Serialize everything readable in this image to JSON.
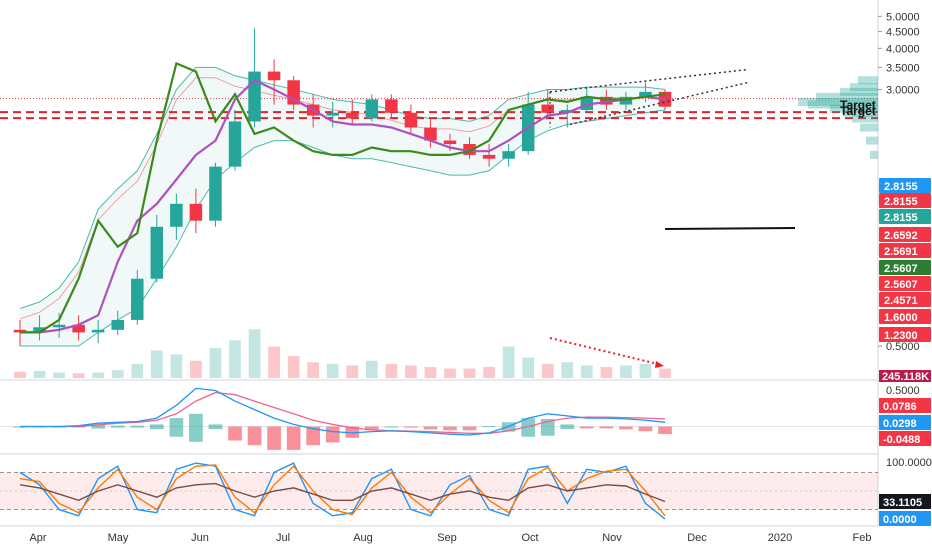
{
  "chart_data": [
    {
      "type": "candlestick",
      "panel": "price",
      "y_scale": "log",
      "ylim": [
        0.4,
        5.3
      ],
      "y_ticks": [
        "5.0000",
        "4.5000",
        "4.0000",
        "3.5000",
        "3.0000",
        "0.5000"
      ],
      "x_ticks": [
        "Apr",
        "May",
        "Jun",
        "Jul",
        "Aug",
        "Sep",
        "Oct",
        "Nov",
        "Dec",
        "2020",
        "Feb"
      ],
      "candles": [
        {
          "date": "04-01",
          "o": 0.56,
          "h": 0.6,
          "l": 0.5,
          "c": 0.55
        },
        {
          "date": "04-08",
          "o": 0.55,
          "h": 0.62,
          "l": 0.52,
          "c": 0.57
        },
        {
          "date": "04-15",
          "o": 0.57,
          "h": 0.63,
          "l": 0.53,
          "c": 0.58
        },
        {
          "date": "04-22",
          "o": 0.58,
          "h": 0.62,
          "l": 0.52,
          "c": 0.55
        },
        {
          "date": "04-29",
          "o": 0.55,
          "h": 0.6,
          "l": 0.51,
          "c": 0.56
        },
        {
          "date": "05-06",
          "o": 0.56,
          "h": 0.64,
          "l": 0.54,
          "c": 0.6
        },
        {
          "date": "05-13",
          "o": 0.6,
          "h": 0.85,
          "l": 0.58,
          "c": 0.8
        },
        {
          "date": "05-20",
          "o": 0.8,
          "h": 1.25,
          "l": 0.78,
          "c": 1.15
        },
        {
          "date": "05-27",
          "o": 1.15,
          "h": 1.45,
          "l": 1.05,
          "c": 1.35
        },
        {
          "date": "06-03",
          "o": 1.35,
          "h": 1.5,
          "l": 1.1,
          "c": 1.2
        },
        {
          "date": "06-10",
          "o": 1.2,
          "h": 1.8,
          "l": 1.15,
          "c": 1.75
        },
        {
          "date": "06-17",
          "o": 1.75,
          "h": 2.6,
          "l": 1.7,
          "c": 2.4
        },
        {
          "date": "06-24",
          "o": 2.4,
          "h": 4.6,
          "l": 2.3,
          "c": 3.4
        },
        {
          "date": "07-01",
          "o": 3.4,
          "h": 3.7,
          "l": 2.7,
          "c": 3.2
        },
        {
          "date": "07-08",
          "o": 3.2,
          "h": 3.3,
          "l": 2.6,
          "c": 2.7
        },
        {
          "date": "07-15",
          "o": 2.7,
          "h": 2.9,
          "l": 2.3,
          "c": 2.5
        },
        {
          "date": "07-22",
          "o": 2.5,
          "h": 2.75,
          "l": 2.3,
          "c": 2.55
        },
        {
          "date": "07-29",
          "o": 2.55,
          "h": 2.8,
          "l": 2.35,
          "c": 2.45
        },
        {
          "date": "08-05",
          "o": 2.45,
          "h": 2.9,
          "l": 2.4,
          "c": 2.8
        },
        {
          "date": "08-12",
          "o": 2.8,
          "h": 2.9,
          "l": 2.45,
          "c": 2.55
        },
        {
          "date": "08-19",
          "o": 2.55,
          "h": 2.7,
          "l": 2.2,
          "c": 2.3
        },
        {
          "date": "08-26",
          "o": 2.3,
          "h": 2.45,
          "l": 2.0,
          "c": 2.1
        },
        {
          "date": "09-02",
          "o": 2.1,
          "h": 2.2,
          "l": 1.95,
          "c": 2.05
        },
        {
          "date": "09-09",
          "o": 2.05,
          "h": 2.15,
          "l": 1.85,
          "c": 1.9
        },
        {
          "date": "09-16",
          "o": 1.9,
          "h": 2.05,
          "l": 1.75,
          "c": 1.85
        },
        {
          "date": "09-23",
          "o": 1.85,
          "h": 2.05,
          "l": 1.75,
          "c": 1.95
        },
        {
          "date": "09-30",
          "o": 1.95,
          "h": 2.95,
          "l": 1.9,
          "c": 2.7
        },
        {
          "date": "10-07",
          "o": 2.7,
          "h": 3.0,
          "l": 2.45,
          "c": 2.55
        },
        {
          "date": "10-14",
          "o": 2.55,
          "h": 2.7,
          "l": 2.3,
          "c": 2.6
        },
        {
          "date": "10-21",
          "o": 2.6,
          "h": 3.05,
          "l": 2.55,
          "c": 2.85
        },
        {
          "date": "10-28",
          "o": 2.85,
          "h": 3.0,
          "l": 2.6,
          "c": 2.7
        },
        {
          "date": "11-04",
          "o": 2.7,
          "h": 2.95,
          "l": 2.6,
          "c": 2.85
        },
        {
          "date": "11-11",
          "o": 2.85,
          "h": 3.15,
          "l": 2.75,
          "c": 2.95
        },
        {
          "date": "11-18",
          "o": 2.95,
          "h": 3.0,
          "l": 2.6,
          "c": 2.66
        }
      ],
      "overlays": {
        "line_green": [
          0.55,
          0.55,
          0.6,
          0.8,
          1.2,
          1.0,
          1.1,
          2.1,
          3.6,
          3.4,
          2.4,
          2.9,
          2.2,
          2.3,
          2.1,
          1.95,
          1.9,
          1.9,
          2.0,
          1.95,
          1.95,
          1.9,
          1.9,
          1.95,
          2.1,
          2.6,
          2.7,
          2.8,
          2.75,
          2.85,
          2.8,
          2.8,
          2.85,
          2.9
        ],
        "line_purple": [
          0.55,
          0.55,
          0.56,
          0.58,
          0.62,
          0.9,
          1.2,
          1.35,
          1.6,
          1.9,
          2.1,
          2.8,
          3.2,
          3.0,
          2.8,
          2.6,
          2.4,
          2.35,
          2.35,
          2.3,
          2.2,
          2.1,
          2.0,
          1.95,
          1.95,
          2.1,
          2.3,
          2.5,
          2.55,
          2.7,
          2.75,
          2.8,
          2.85,
          2.8
        ],
        "band_upper": [
          0.65,
          0.68,
          0.75,
          0.9,
          1.3,
          1.5,
          1.7,
          2.2,
          3.0,
          3.5,
          3.5,
          3.3,
          3.2,
          3.1,
          3.0,
          2.9,
          2.8,
          2.75,
          2.7,
          2.6,
          2.5,
          2.45,
          2.45,
          2.4,
          2.5,
          2.8,
          2.9,
          3.0,
          3.0,
          3.05,
          3.05,
          3.05,
          3.05,
          3.0
        ],
        "band_lower": [
          0.5,
          0.5,
          0.5,
          0.5,
          0.55,
          0.6,
          0.65,
          0.8,
          1.0,
          1.3,
          1.6,
          1.8,
          2.0,
          2.1,
          2.1,
          2.0,
          1.9,
          1.85,
          1.85,
          1.8,
          1.75,
          1.7,
          1.65,
          1.65,
          1.7,
          1.9,
          2.1,
          2.25,
          2.35,
          2.4,
          2.45,
          2.5,
          2.55,
          2.6
        ]
      },
      "price_labels": [
        {
          "text": "2.8155",
          "color": "#2196f3"
        },
        {
          "text": "2.8155",
          "color": "#f23645"
        },
        {
          "text": "2.8155",
          "color": "#26a69a"
        },
        {
          "text": "2.6592",
          "color": "#f23645"
        },
        {
          "text": "2.5691",
          "color": "#f23645"
        },
        {
          "text": "2.5607",
          "color": "#2e7d32"
        },
        {
          "text": "2.5607",
          "color": "#f23645"
        },
        {
          "text": "2.4571",
          "color": "#f23645"
        },
        {
          "text": "1.6000",
          "color": "#f23645"
        },
        {
          "text": "1.2300",
          "color": "#f23645"
        }
      ],
      "annotations": [
        {
          "text": "Target",
          "level": 2.5607
        },
        {
          "text": "Target",
          "level": 2.4571
        }
      ],
      "volume_label": "245.118K",
      "volume_label_color": "#b71c4a"
    },
    {
      "type": "line+bar",
      "panel": "macd",
      "ylim": [
        -0.06,
        0.105
      ],
      "y_ticks": [
        "0.5000"
      ],
      "value_labels": [
        {
          "text": "0.0786",
          "color": "#f23645"
        },
        {
          "text": "0.0298",
          "color": "#2196f3"
        },
        {
          "text": "-0.0488",
          "color": "#f23645"
        }
      ],
      "series": [
        {
          "values": [
            0,
            0,
            0,
            0.002,
            0.008,
            0.01,
            0.012,
            0.02,
            0.05,
            0.09,
            0.085,
            0.06,
            0.04,
            0.02,
            0.005,
            -0.005,
            -0.012,
            -0.015,
            -0.012,
            -0.01,
            -0.012,
            -0.015,
            -0.018,
            -0.02,
            -0.015,
            0.0,
            0.02,
            0.03,
            0.025,
            0.02,
            0.02,
            0.018,
            0.015,
            0.01
          ]
        },
        {
          "values": [
            0,
            0,
            0,
            0,
            0.004,
            0.008,
            0.01,
            0.015,
            0.03,
            0.06,
            0.08,
            0.075,
            0.06,
            0.045,
            0.03,
            0.015,
            0.005,
            -0.003,
            -0.008,
            -0.01,
            -0.011,
            -0.012,
            -0.014,
            -0.016,
            -0.016,
            -0.01,
            0.0,
            0.012,
            0.02,
            0.022,
            0.022,
            0.021,
            0.02,
            0.018
          ]
        }
      ]
    },
    {
      "type": "line",
      "panel": "stochastic",
      "ylim": [
        0,
        100
      ],
      "y_ticks": [
        "100.0000"
      ],
      "value_labels": [
        {
          "text": "33.1105",
          "color": "#131722"
        },
        {
          "text": "0.0000",
          "color": "#2196f3"
        }
      ],
      "series": [
        {
          "values": [
            80,
            60,
            20,
            10,
            70,
            90,
            20,
            15,
            85,
            95,
            90,
            20,
            10,
            80,
            95,
            30,
            10,
            15,
            70,
            85,
            20,
            10,
            60,
            75,
            20,
            10,
            85,
            90,
            30,
            85,
            80,
            90,
            30,
            5
          ]
        },
        {
          "values": [
            70,
            65,
            30,
            15,
            55,
            85,
            40,
            20,
            70,
            90,
            92,
            40,
            15,
            60,
            90,
            50,
            20,
            12,
            55,
            80,
            40,
            15,
            45,
            70,
            35,
            15,
            70,
            88,
            50,
            70,
            82,
            85,
            50,
            10
          ]
        },
        {
          "values": [
            60,
            55,
            45,
            35,
            50,
            60,
            50,
            40,
            55,
            60,
            62,
            50,
            40,
            50,
            55,
            45,
            35,
            35,
            50,
            55,
            45,
            35,
            45,
            50,
            40,
            35,
            55,
            60,
            50,
            55,
            60,
            58,
            45,
            33
          ]
        }
      ]
    }
  ]
}
